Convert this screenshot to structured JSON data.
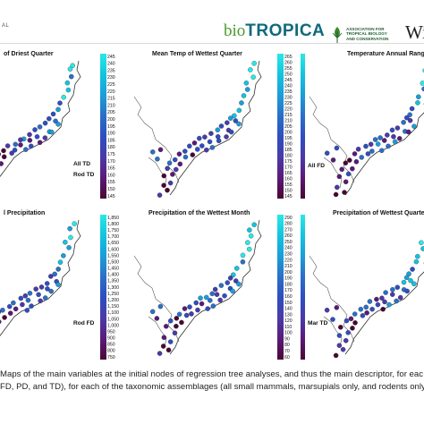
{
  "header": {
    "journal_tag": "AL",
    "logo_prefix": "bio",
    "logo_main": "TROPICA",
    "association": [
      "ASSOCIATION FOR",
      "TROPICAL BIOLOGY",
      "AND CONSERVATION"
    ],
    "publisher": "Wi"
  },
  "colormap": [
    "#4a0632",
    "#5a1a78",
    "#4a3aa8",
    "#2e4ec0",
    "#2a6fc8",
    "#1a9ed8",
    "#12c4e0",
    "#2ae8e6"
  ],
  "panels": [
    {
      "id": "p1",
      "title": "of Driest Quarter",
      "ticks": [
        "245",
        "240",
        "235",
        "230",
        "225",
        "220",
        "215",
        "210",
        "205",
        "200",
        "195",
        "190",
        "185",
        "180",
        "175",
        "170",
        "165",
        "160",
        "155",
        "150",
        "145"
      ],
      "labels": [
        "All TD",
        "Rod TD"
      ],
      "label_pos": "left"
    },
    {
      "id": "p2",
      "title": "Mean Temp of Wettest Quarter",
      "ticks": [
        "265",
        "260",
        "255",
        "250",
        "245",
        "240",
        "235",
        "230",
        "225",
        "220",
        "215",
        "210",
        "205",
        "200",
        "195",
        "190",
        "185",
        "180",
        "175",
        "170",
        "165",
        "160",
        "155",
        "150",
        "145"
      ],
      "labels": [],
      "label_pos": "none"
    },
    {
      "id": "p3",
      "title": "Temperature Annual Range",
      "ticks": [],
      "labels": [
        "All FD"
      ],
      "label_pos": "left"
    },
    {
      "id": "p4",
      "title": "l Precipitation",
      "ticks": [
        "1,850",
        "1,800",
        "1,750",
        "1,700",
        "1,650",
        "1,600",
        "1,550",
        "1,500",
        "1,450",
        "1,400",
        "1,350",
        "1,300",
        "1,250",
        "1,200",
        "1,150",
        "1,100",
        "1,050",
        "1,000",
        "950",
        "900",
        "850",
        "800",
        "750"
      ],
      "labels": [
        "Rod FD"
      ],
      "label_pos": "left"
    },
    {
      "id": "p5",
      "title": "Precipitation of the Wettest Month",
      "ticks": [
        "290",
        "280",
        "270",
        "260",
        "250",
        "240",
        "230",
        "220",
        "210",
        "200",
        "190",
        "180",
        "170",
        "160",
        "150",
        "140",
        "130",
        "120",
        "110",
        "100",
        "90",
        "80",
        "70",
        "60"
      ],
      "labels": [],
      "label_pos": "none"
    },
    {
      "id": "p6",
      "title": "Precipitation of Wettest Quarte",
      "ticks": [],
      "labels": [
        "Mar TD"
      ],
      "label_pos": "left"
    }
  ],
  "caption": {
    "line1": "Maps of the main variables at the initial nodes of regression tree analyses, and thus the main descriptor, for eac",
    "line2": "FD, PD, and TD), for each of the taxonomic assemblages (all small mammals, marsupials only, and rodents only"
  }
}
